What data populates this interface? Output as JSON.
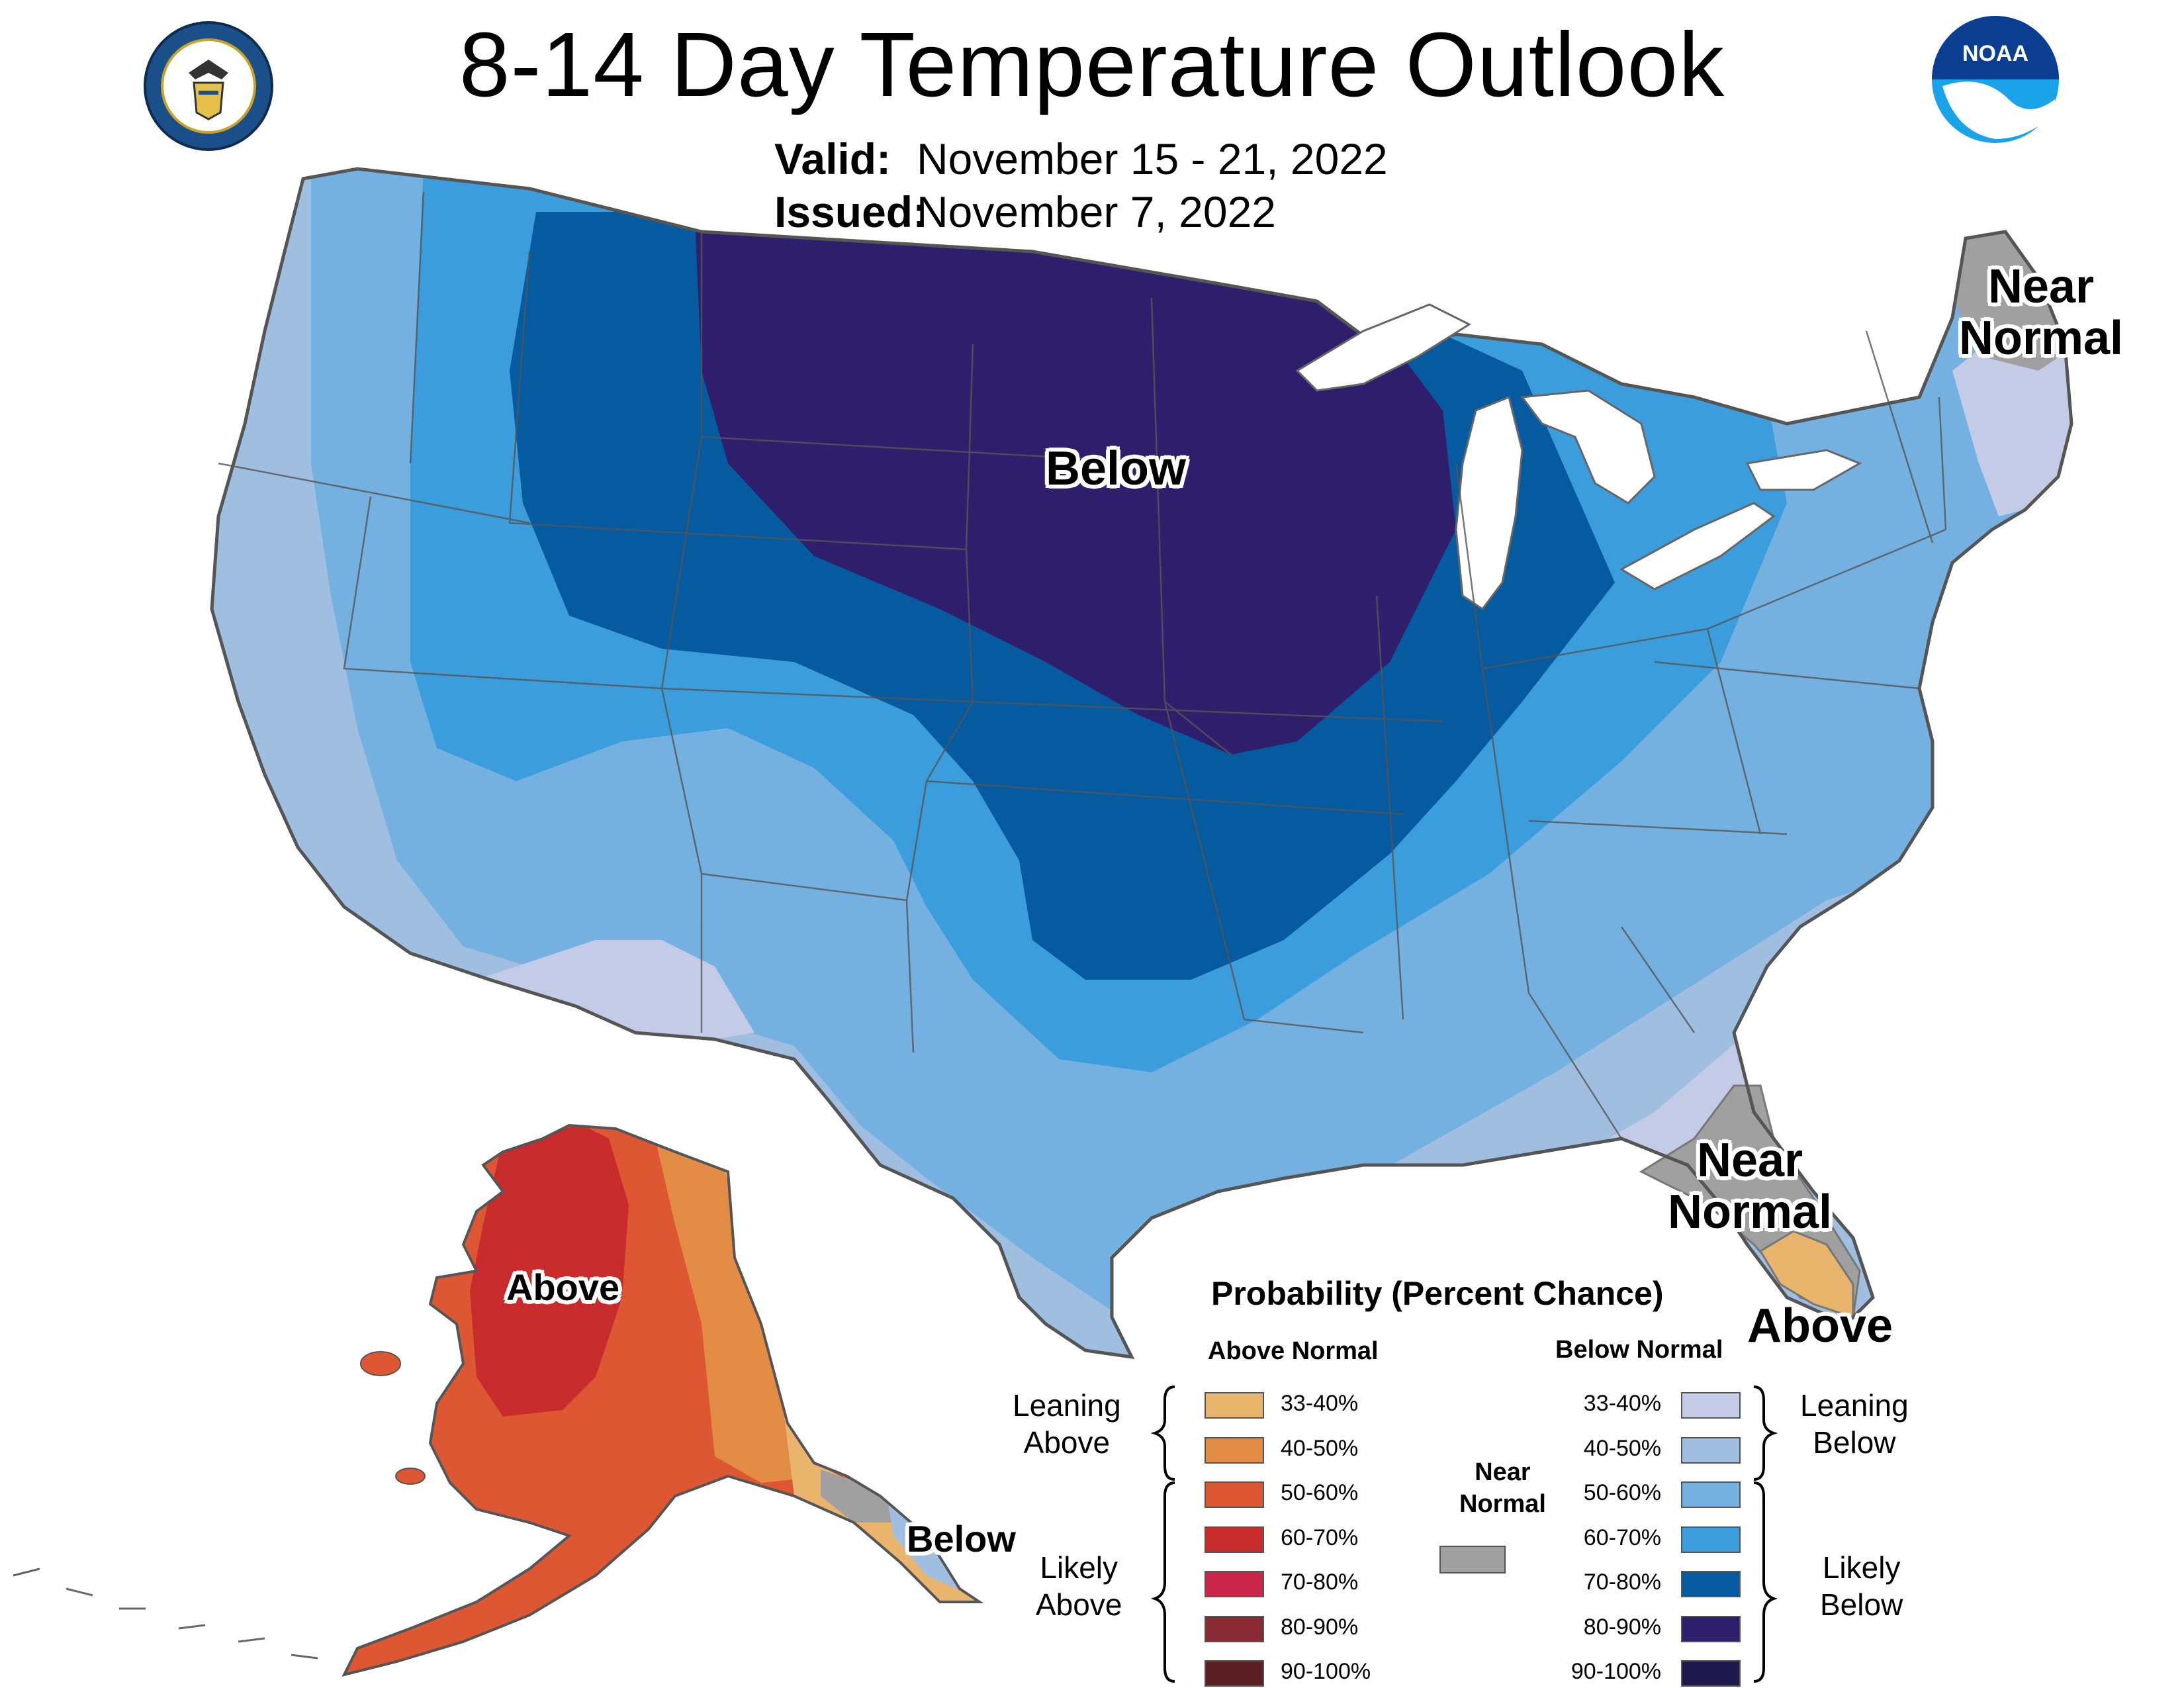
{
  "header": {
    "title": "8-14 Day Temperature Outlook",
    "valid_label": "Valid:",
    "valid_value": "November 15 - 21, 2022",
    "issued_label": "Issued:",
    "issued_value": "November 7, 2022"
  },
  "logos": {
    "commerce": "department-of-commerce-seal",
    "noaa": "NOAA"
  },
  "map_labels": {
    "below_conus": "Below",
    "near_normal_ne_line1": "Near",
    "near_normal_ne_line2": "Normal",
    "near_normal_fl_line1": "Near",
    "near_normal_fl_line2": "Normal",
    "above_fl": "Above",
    "above_ak": "Above",
    "below_ak": "Below"
  },
  "legend": {
    "title": "Probability (Percent Chance)",
    "above_header": "Above Normal",
    "below_header": "Below Normal",
    "near_label_line1": "Near",
    "near_label_line2": "Normal",
    "near_color": "#a0a0a0",
    "leaning_above_line1": "Leaning",
    "leaning_above_line2": "Above",
    "likely_above_line1": "Likely",
    "likely_above_line2": "Above",
    "leaning_below_line1": "Leaning",
    "leaning_below_line2": "Below",
    "likely_below_line1": "Likely",
    "likely_below_line2": "Below",
    "above": [
      {
        "range": "33-40%",
        "color": "#e9b46c"
      },
      {
        "range": "40-50%",
        "color": "#e38c46"
      },
      {
        "range": "50-60%",
        "color": "#dc5732"
      },
      {
        "range": "60-70%",
        "color": "#c82b2b"
      },
      {
        "range": "70-80%",
        "color": "#c9264a"
      },
      {
        "range": "80-90%",
        "color": "#8a2a35"
      },
      {
        "range": "90-100%",
        "color": "#5c1f24"
      }
    ],
    "below": [
      {
        "range": "33-40%",
        "color": "#c4cbe7"
      },
      {
        "range": "40-50%",
        "color": "#a0bfe0"
      },
      {
        "range": "50-60%",
        "color": "#74b1e0"
      },
      {
        "range": "60-70%",
        "color": "#3b9ddb"
      },
      {
        "range": "70-80%",
        "color": "#055aa0"
      },
      {
        "range": "80-90%",
        "color": "#2e1e6b"
      },
      {
        "range": "90-100%",
        "color": "#1e1a4e"
      }
    ]
  }
}
